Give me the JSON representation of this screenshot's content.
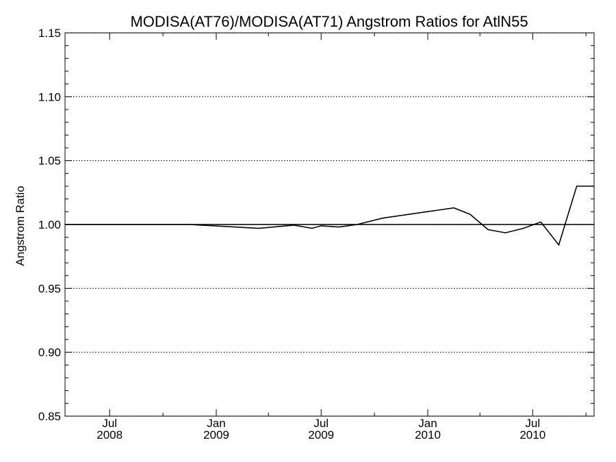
{
  "chart_data": {
    "type": "line",
    "title": "MODISA(AT76)/MODISA(AT71)  Angstrom Ratios for AtlN55",
    "xlabel": "",
    "ylabel": "Angstrom Ratio",
    "ylim": [
      0.85,
      1.15
    ],
    "yticks": [
      "0.85",
      "0.90",
      "0.95",
      "1.00",
      "1.05",
      "1.10",
      "1.15"
    ],
    "ytick_values": [
      0.85,
      0.9,
      0.95,
      1.0,
      1.05,
      1.1,
      1.15
    ],
    "xlim": [
      "2008-04-15",
      "2010-10-15"
    ],
    "xticks": [
      {
        "date": "2008-07-01",
        "month": "Jul",
        "year": "2008"
      },
      {
        "date": "2009-01-01",
        "month": "Jan",
        "year": "2009"
      },
      {
        "date": "2009-07-01",
        "month": "Jul",
        "year": "2009"
      },
      {
        "date": "2010-01-01",
        "month": "Jan",
        "year": "2010"
      },
      {
        "date": "2010-07-01",
        "month": "Jul",
        "year": "2010"
      }
    ],
    "reference_line": 1.0,
    "grid": "dotted horizontal at major y ticks",
    "series": [
      {
        "x": [
          "2008-04-15",
          "2008-06-15",
          "2008-08-15",
          "2008-10-15",
          "2008-11-15",
          "2009-01-15",
          "2009-03-15",
          "2009-05-15",
          "2009-06-15",
          "2009-07-01",
          "2009-08-01",
          "2009-09-01",
          "2009-10-15",
          "2010-02-15",
          "2010-03-15",
          "2010-04-15",
          "2010-05-15",
          "2010-06-15",
          "2010-07-15",
          "2010-08-15",
          "2010-09-15",
          "2010-10-15"
        ],
        "values": [
          1.0,
          1.0,
          1.0,
          1.0,
          1.0,
          0.9985,
          0.997,
          0.9995,
          0.997,
          0.999,
          0.998,
          1.0,
          1.005,
          1.013,
          1.008,
          0.996,
          0.9935,
          0.997,
          1.002,
          0.984,
          1.03,
          1.03
        ]
      }
    ]
  }
}
